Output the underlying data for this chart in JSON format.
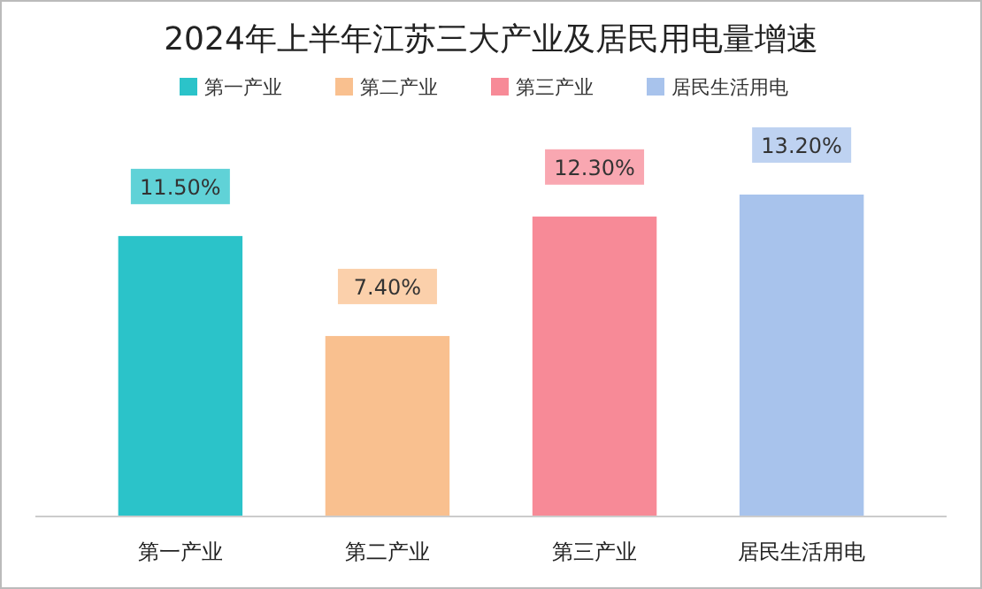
{
  "chart_data": {
    "type": "bar",
    "title": "2024年上半年江苏三大产业及居民用电量增速",
    "categories": [
      "第一产业",
      "第二产业",
      "第三产业",
      "居民生活用电"
    ],
    "series": [
      {
        "name": "第一产业",
        "color": "#2bc3c9",
        "values": [
          11.5,
          null,
          null,
          null
        ],
        "value_labels": [
          "11.50%",
          null,
          null,
          null
        ]
      },
      {
        "name": "第二产业",
        "color": "#f9c08f",
        "values": [
          null,
          7.4,
          null,
          null
        ],
        "value_labels": [
          null,
          "7.40%",
          null,
          null
        ]
      },
      {
        "name": "第三产业",
        "color": "#f78a97",
        "values": [
          null,
          null,
          12.3,
          null
        ],
        "value_labels": [
          null,
          null,
          "12.30%",
          null
        ]
      },
      {
        "name": "居民生活用电",
        "color": "#a8c3ec",
        "values": [
          null,
          null,
          null,
          13.2
        ],
        "value_labels": [
          null,
          null,
          null,
          "13.20%"
        ]
      }
    ],
    "legend": "top"
  }
}
